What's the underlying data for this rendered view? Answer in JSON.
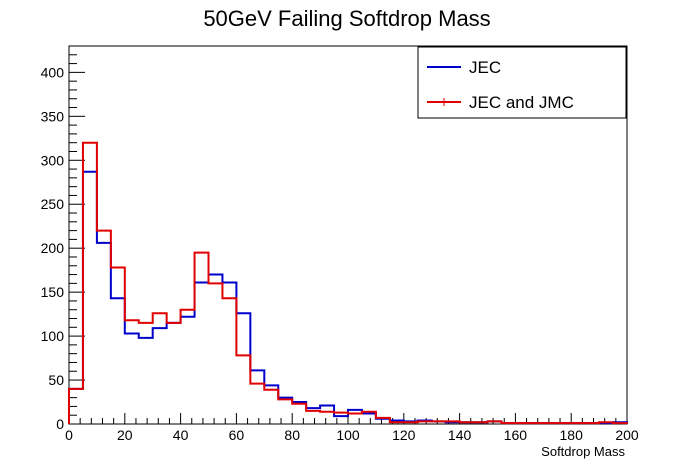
{
  "chart_data": {
    "type": "histogram",
    "title": "50GeV Failing Softdrop Mass",
    "xlabel": "Softdrop Mass",
    "ylabel": "",
    "xlim": [
      0,
      200
    ],
    "ylim": [
      0,
      430
    ],
    "x_ticks": [
      0,
      20,
      40,
      60,
      80,
      100,
      120,
      140,
      160,
      180,
      200
    ],
    "y_ticks": [
      0,
      50,
      100,
      150,
      200,
      250,
      300,
      350,
      400
    ],
    "bin_width": 5,
    "legend_position": "top-right",
    "grid": false,
    "series": [
      {
        "name": "JEC",
        "color": "#0000cc",
        "values": [
          40,
          287,
          206,
          143,
          103,
          98,
          109,
          115,
          122,
          161,
          170,
          161,
          126,
          61,
          44,
          30,
          25,
          18,
          21,
          9,
          16,
          12,
          6,
          4,
          3,
          4,
          3,
          2,
          2,
          2,
          3,
          1,
          1,
          1,
          1,
          1,
          1,
          1,
          1,
          2
        ]
      },
      {
        "name": "JEC and JMC",
        "color": "#e00000",
        "values": [
          40,
          320,
          220,
          178,
          118,
          115,
          126,
          115,
          130,
          195,
          160,
          143,
          78,
          46,
          39,
          28,
          23,
          15,
          14,
          13,
          12,
          14,
          7,
          2,
          2,
          3,
          3,
          3,
          2,
          2,
          3,
          1,
          1,
          1,
          1,
          1,
          1,
          1,
          2,
          1
        ]
      }
    ]
  }
}
